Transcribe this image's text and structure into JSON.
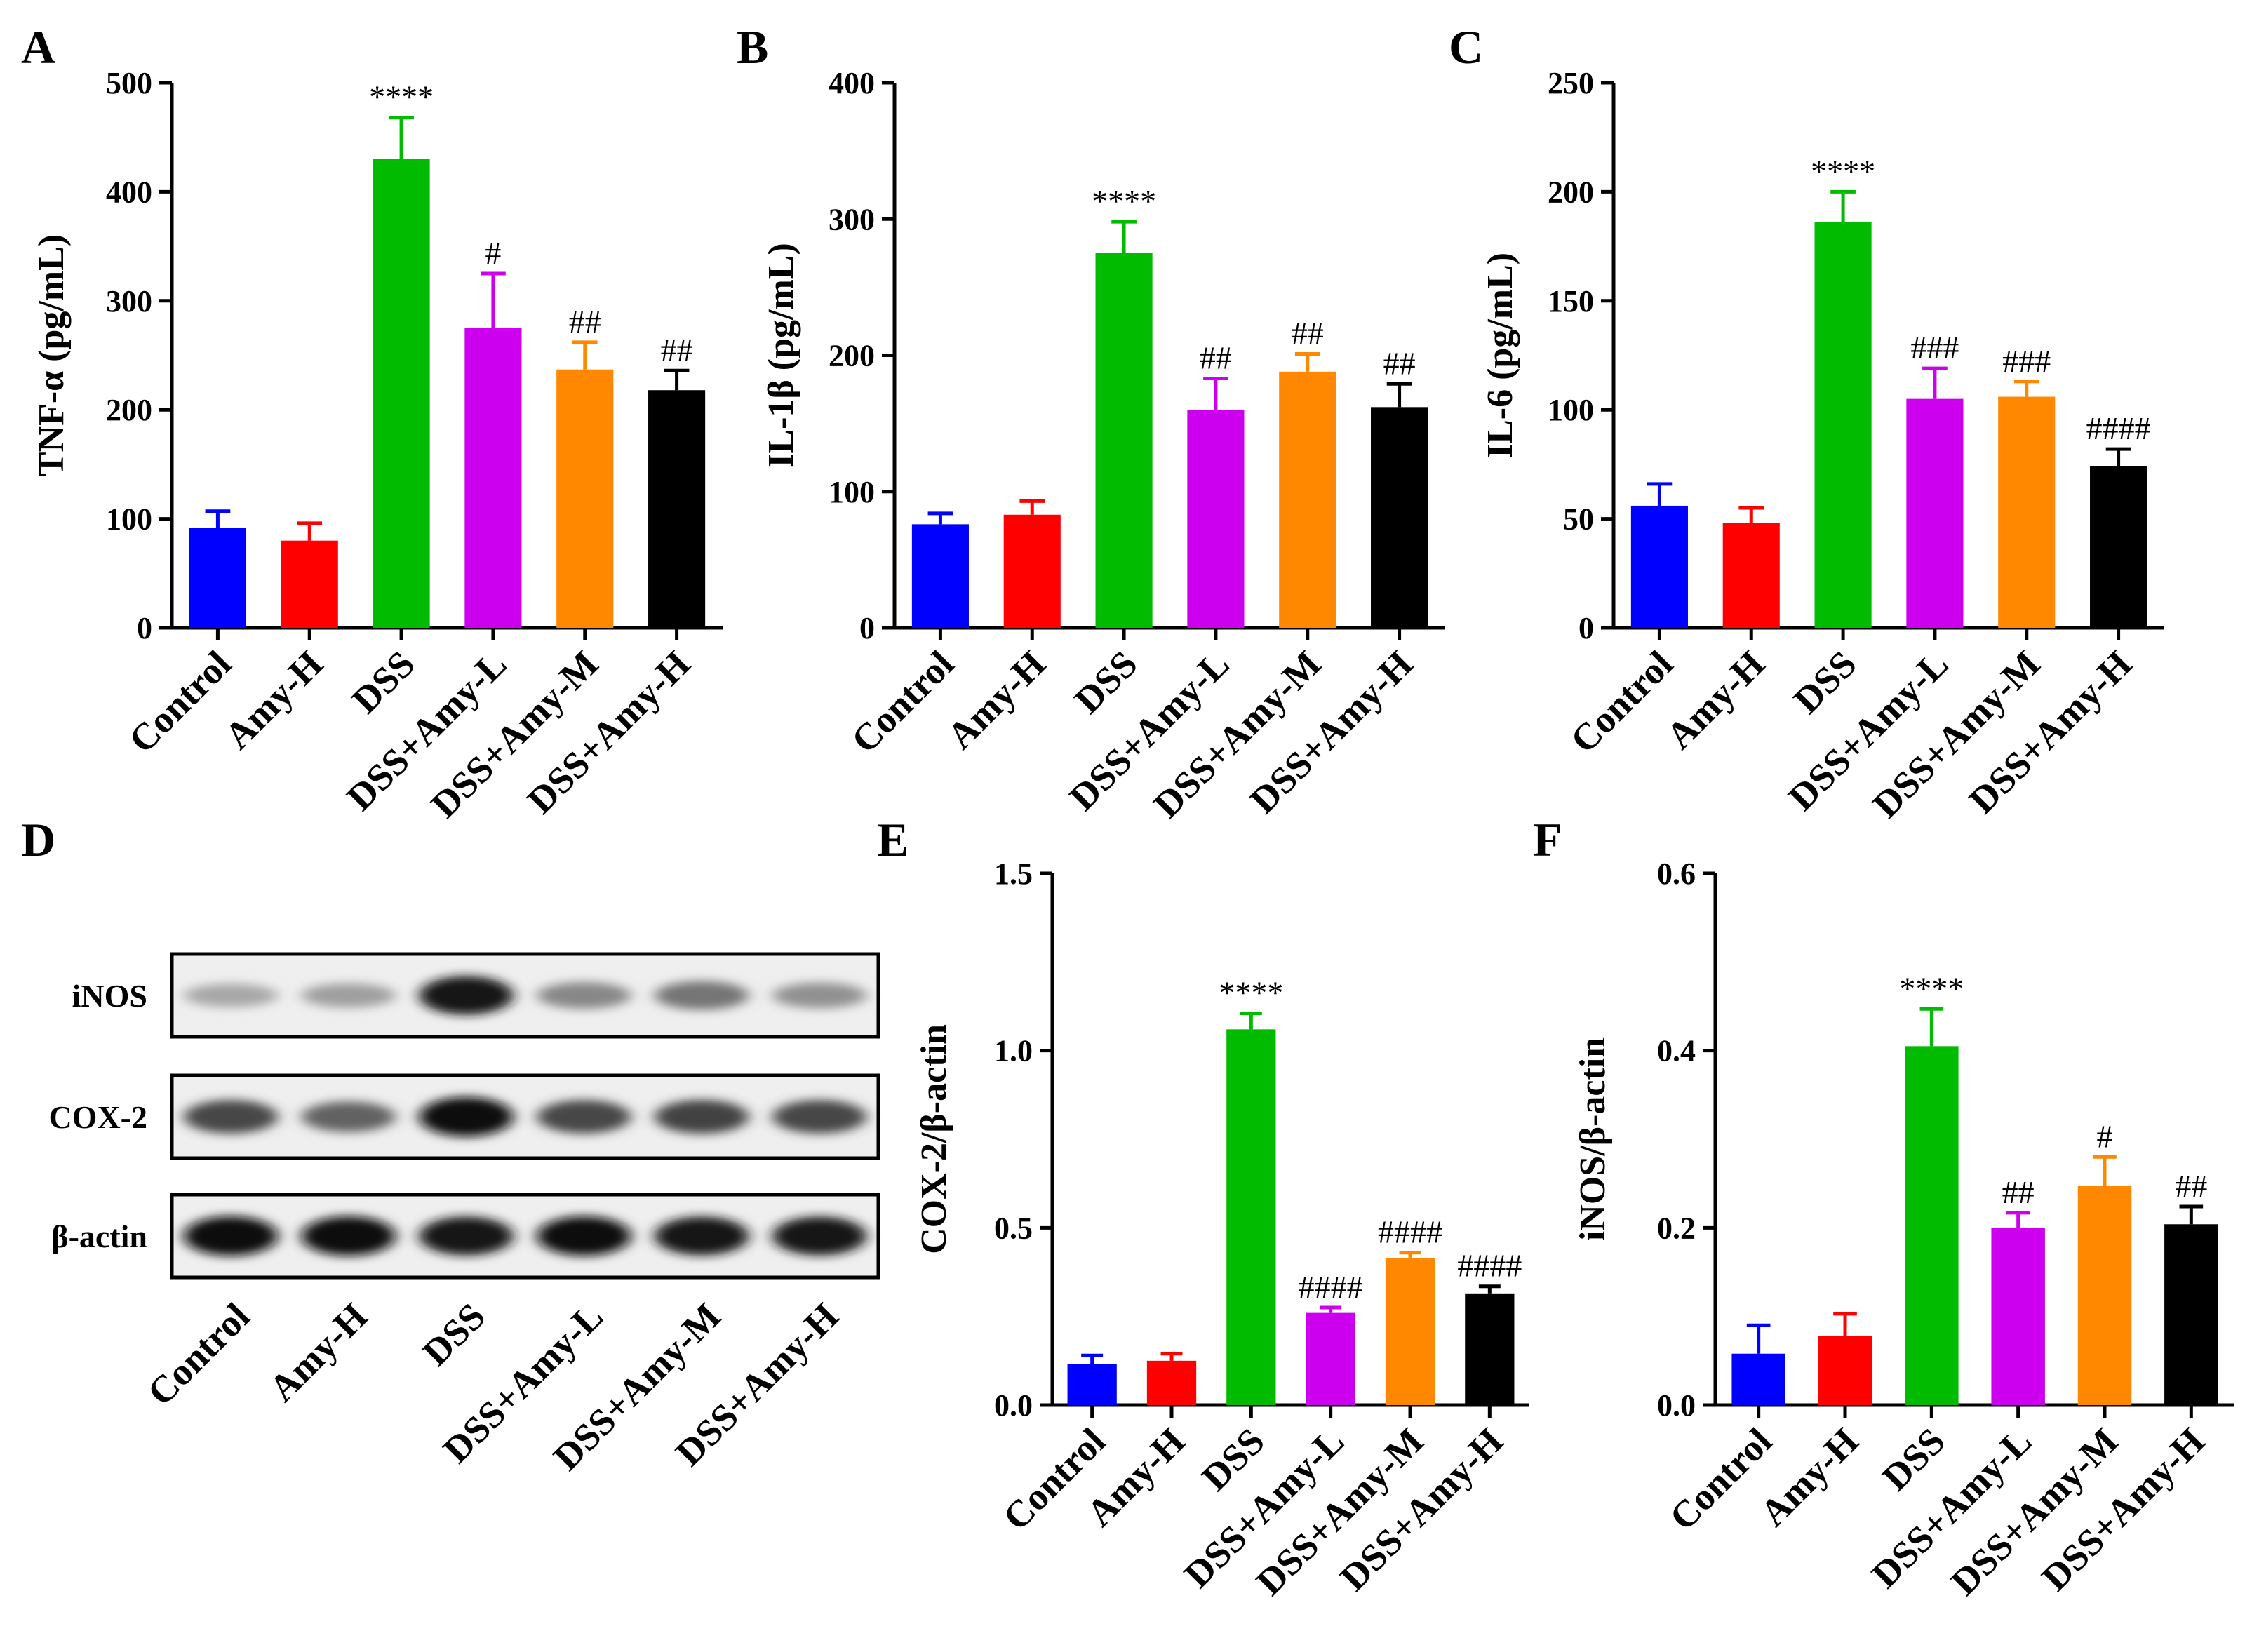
{
  "colors": [
    "#0000ff",
    "#ff0000",
    "#00bb00",
    "#cc00ee",
    "#ff8800",
    "#000000"
  ],
  "chart_data": [
    {
      "type": "bar",
      "panel": "A",
      "categories": [
        "Control",
        "Amy-H",
        "DSS",
        "DSS+Amy-L",
        "DSS+Amy-M",
        "DSS+Amy-H"
      ],
      "values": [
        92,
        80,
        430,
        275,
        237,
        218
      ],
      "errors": [
        15,
        16,
        38,
        50,
        25,
        18
      ],
      "significance": [
        "",
        "",
        "****",
        "#",
        "##",
        "##"
      ],
      "ylabel": "TNF-α (pg/mL)",
      "ylim": [
        0,
        500
      ],
      "yticks": [
        "0",
        "100",
        "200",
        "300",
        "400",
        "500"
      ]
    },
    {
      "type": "bar",
      "panel": "B",
      "categories": [
        "Control",
        "Amy-H",
        "DSS",
        "DSS+Amy-L",
        "DSS+Amy-M",
        "DSS+Amy-H"
      ],
      "values": [
        76,
        83,
        275,
        160,
        188,
        162
      ],
      "errors": [
        8,
        10,
        23,
        23,
        13,
        17
      ],
      "significance": [
        "",
        "",
        "****",
        "##",
        "##",
        "##"
      ],
      "ylabel": "IL-1β (pg/mL)",
      "ylim": [
        0,
        400
      ],
      "yticks": [
        "0",
        "100",
        "200",
        "300",
        "400"
      ]
    },
    {
      "type": "bar",
      "panel": "C",
      "categories": [
        "Control",
        "Amy-H",
        "DSS",
        "DSS+Amy-L",
        "DSS+Amy-M",
        "DSS+Amy-H"
      ],
      "values": [
        56,
        48,
        186,
        105,
        106,
        74
      ],
      "errors": [
        10,
        7,
        14,
        14,
        7,
        8
      ],
      "significance": [
        "",
        "",
        "****",
        "###",
        "###",
        "####"
      ],
      "ylabel": "IL-6 (pg/mL)",
      "ylim": [
        0,
        250
      ],
      "yticks": [
        "0",
        "50",
        "100",
        "150",
        "200",
        "250"
      ]
    },
    {
      "type": "bar",
      "panel": "E",
      "categories": [
        "Control",
        "Amy-H",
        "DSS",
        "DSS+Amy-L",
        "DSS+Amy-M",
        "DSS+Amy-H"
      ],
      "values": [
        0.115,
        0.125,
        1.06,
        0.26,
        0.415,
        0.315
      ],
      "errors": [
        0.025,
        0.02,
        0.045,
        0.015,
        0.015,
        0.02
      ],
      "significance": [
        "",
        "",
        "****",
        "####",
        "####",
        "####"
      ],
      "ylabel": "COX-2/β-actin",
      "ylim": [
        0,
        1.5
      ],
      "yticks": [
        "0.0",
        "0.5",
        "1.0",
        "1.5"
      ]
    },
    {
      "type": "bar",
      "panel": "F",
      "categories": [
        "Control",
        "Amy-H",
        "DSS",
        "DSS+Amy-L",
        "DSS+Amy-M",
        "DSS+Amy-H"
      ],
      "values": [
        0.058,
        0.078,
        0.405,
        0.2,
        0.247,
        0.204
      ],
      "errors": [
        0.032,
        0.025,
        0.042,
        0.017,
        0.033,
        0.02
      ],
      "significance": [
        "",
        "",
        "****",
        "##",
        "#",
        "##"
      ],
      "ylabel": "iNOS/β-actin",
      "ylim": [
        0,
        0.6
      ],
      "yticks": [
        "0.0",
        "0.2",
        "0.4",
        "0.6"
      ]
    }
  ],
  "blot": {
    "panel": "D",
    "rows": [
      {
        "label": "iNOS",
        "intensity": [
          0.18,
          0.22,
          0.95,
          0.35,
          0.45,
          0.3
        ]
      },
      {
        "label": "COX-2",
        "intensity": [
          0.7,
          0.55,
          1.0,
          0.7,
          0.72,
          0.7
        ]
      },
      {
        "label": "β-actin",
        "intensity": [
          1.0,
          1.0,
          0.95,
          1.0,
          0.95,
          0.95
        ]
      }
    ],
    "lanes": [
      "Control",
      "Amy-H",
      "DSS",
      "DSS+Amy-L",
      "DSS+Amy-M",
      "DSS+Amy-H"
    ]
  }
}
